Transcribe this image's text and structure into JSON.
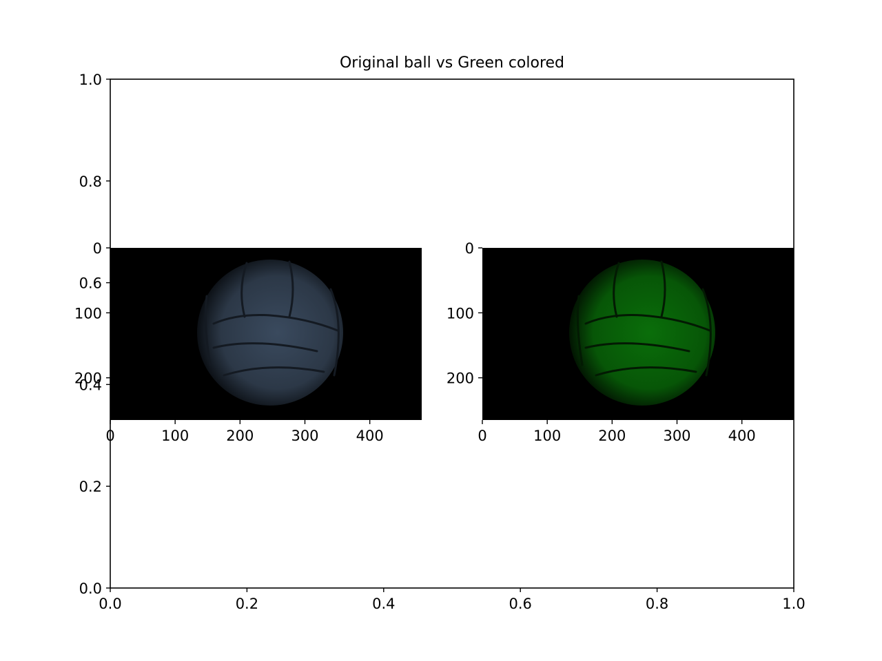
{
  "chart_data": [
    {
      "type": "axes",
      "title": "Original ball vs Green colored",
      "xlabel": "",
      "ylabel": "",
      "xlim": [
        0.0,
        1.0
      ],
      "ylim": [
        0.0,
        1.0
      ],
      "xticks": [
        0.0,
        0.2,
        0.4,
        0.6,
        0.8,
        1.0
      ],
      "yticks": [
        0.0,
        0.2,
        0.4,
        0.6,
        0.8,
        1.0
      ],
      "xtick_labels": [
        "0.0",
        "0.2",
        "0.4",
        "0.6",
        "0.8",
        "1.0"
      ],
      "ytick_labels": [
        "0.0",
        "0.2",
        "0.4",
        "0.6",
        "0.8",
        "1.0"
      ],
      "grid": false
    },
    {
      "type": "image",
      "title": "",
      "content": "volleyball",
      "tint": "#3a4a5e",
      "xlim": [
        0,
        480
      ],
      "ylim": [
        265,
        0
      ],
      "xticks": [
        0,
        100,
        200,
        300,
        400
      ],
      "yticks": [
        0,
        100,
        200
      ],
      "xtick_labels": [
        "0",
        "100",
        "200",
        "300",
        "400"
      ],
      "ytick_labels": [
        "0",
        "100",
        "200"
      ]
    },
    {
      "type": "image",
      "title": "",
      "content": "volleyball",
      "tint": "#0a6a0a",
      "xlim": [
        0,
        480
      ],
      "ylim": [
        265,
        0
      ],
      "xticks": [
        0,
        100,
        200,
        300,
        400
      ],
      "yticks": [
        0,
        100,
        200
      ],
      "xtick_labels": [
        "0",
        "100",
        "200",
        "300",
        "400"
      ],
      "ytick_labels": [
        "0",
        "100",
        "200"
      ]
    }
  ]
}
